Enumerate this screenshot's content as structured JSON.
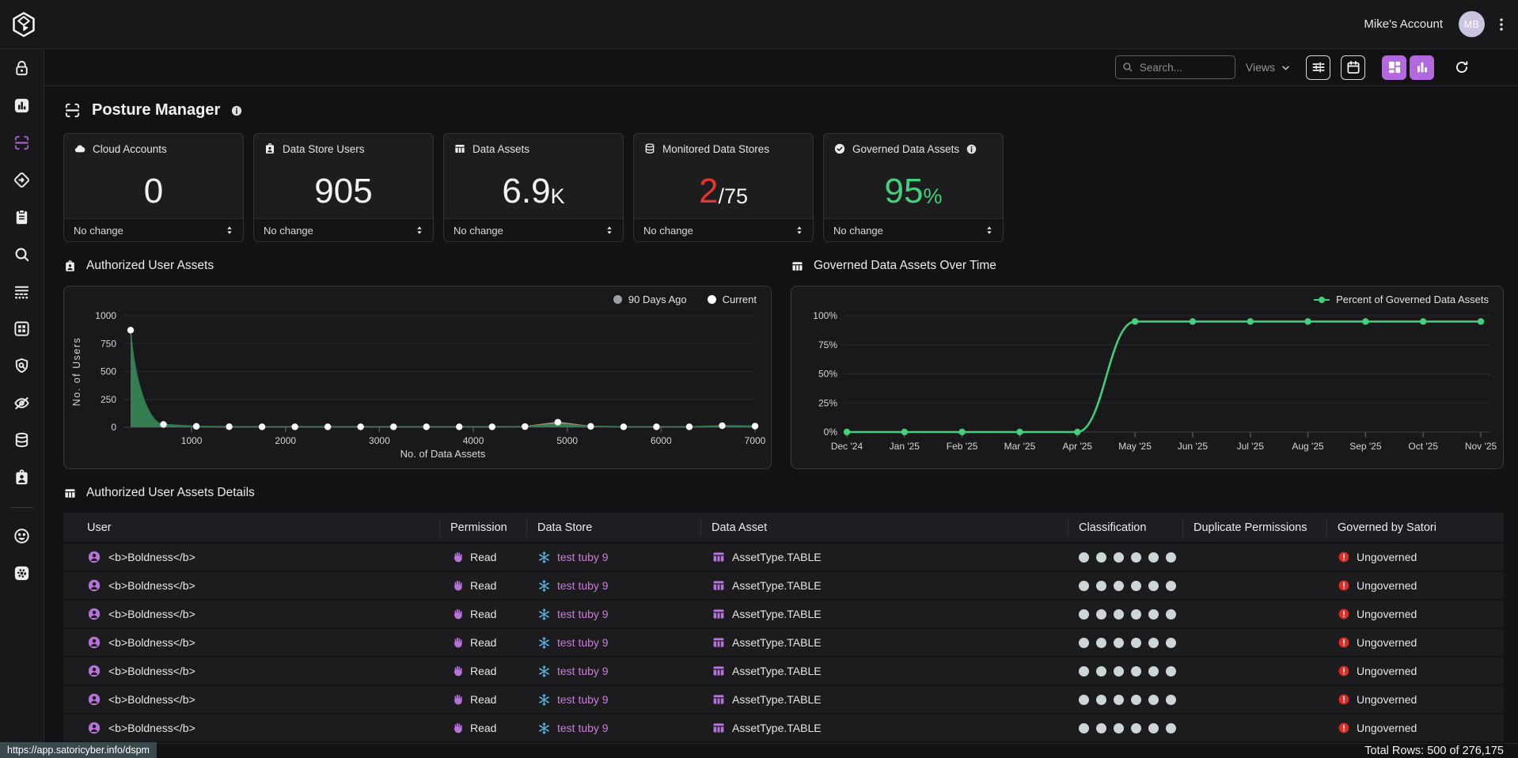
{
  "topbar": {
    "account_label": "Mike's Account",
    "avatar_initials": "MB"
  },
  "toolbar": {
    "search_placeholder": "Search...",
    "views_label": "Views",
    "buttons": [
      {
        "name": "filter-button",
        "icon": "sliders",
        "style": "outline"
      },
      {
        "name": "calendar-button",
        "icon": "calendar",
        "style": "outline"
      },
      {
        "name": "dashboard-view-button",
        "icon": "dashboard",
        "style": "purple"
      },
      {
        "name": "chart-view-button",
        "icon": "bar-chart-small",
        "style": "purple"
      },
      {
        "name": "refresh-button",
        "icon": "refresh",
        "style": "plain"
      }
    ]
  },
  "sidebar": {
    "items": [
      {
        "name": "access-lock",
        "icon": "lock",
        "active": false
      },
      {
        "name": "reports",
        "icon": "bar-chart",
        "active": false
      },
      {
        "name": "posture-manager",
        "icon": "posture-scan",
        "active": true
      },
      {
        "name": "policies",
        "icon": "policy-diamond",
        "active": false
      },
      {
        "name": "audit",
        "icon": "clipboard",
        "active": false
      },
      {
        "name": "search-explore",
        "icon": "search",
        "active": false
      },
      {
        "name": "data-flows",
        "icon": "data-flows",
        "active": false
      },
      {
        "name": "integrations",
        "icon": "grid-apps",
        "active": false
      },
      {
        "name": "threat-detection",
        "icon": "shield-search",
        "active": false
      },
      {
        "name": "masking",
        "icon": "eye-off",
        "active": false
      },
      {
        "name": "data-stores",
        "icon": "database",
        "active": false
      },
      {
        "name": "identities",
        "icon": "id-badge",
        "active": false
      },
      {
        "name": "divider",
        "icon": "divider",
        "active": false
      },
      {
        "name": "community",
        "icon": "community",
        "active": false
      },
      {
        "name": "settings",
        "icon": "settings",
        "active": false
      }
    ]
  },
  "page": {
    "title": "Posture Manager"
  },
  "stat_cards": [
    {
      "label": "Cloud Accounts",
      "icon": "cloud",
      "value": "0",
      "suffix": "",
      "value_color": "#f5f5f5",
      "suffix_color": "#f5f5f5",
      "info": false,
      "footer": "No change"
    },
    {
      "label": "Data Store Users",
      "icon": "id-badge",
      "value": "905",
      "suffix": "",
      "value_color": "#f5f5f5",
      "suffix_color": "#f5f5f5",
      "info": false,
      "footer": "No change"
    },
    {
      "label": "Data Assets",
      "icon": "table",
      "value": "6.9",
      "suffix": "K",
      "value_color": "#f5f5f5",
      "suffix_color": "#f5f5f5",
      "info": false,
      "footer": "No change"
    },
    {
      "label": "Monitored Data Stores",
      "icon": "database",
      "value": "2",
      "suffix": "/75",
      "value_color": "#e8352c",
      "suffix_color": "#f5f5f5",
      "info": false,
      "footer": "No change"
    },
    {
      "label": "Governed Data Assets",
      "icon": "check-circle",
      "value": "95",
      "suffix": "%",
      "value_color": "#42d07b",
      "suffix_color": "#42d07b",
      "info": true,
      "footer": "No change"
    }
  ],
  "chart_data": [
    {
      "type": "area",
      "title": "Authorized User Assets",
      "title_icon": "id-badge",
      "xlabel": "No. of Data Assets",
      "ylabel": "No. of Users",
      "x": [
        350,
        700,
        1050,
        1400,
        1750,
        2100,
        2450,
        2800,
        3150,
        3500,
        3850,
        4200,
        4550,
        4900,
        5250,
        5600,
        5950,
        6300,
        6650,
        7000
      ],
      "series": [
        {
          "name": "90 Days Ago",
          "color": "#a98c72",
          "fill": "#a98c72",
          "values": [
            860,
            20,
            5,
            4,
            4,
            4,
            4,
            4,
            4,
            4,
            4,
            4,
            6,
            45,
            8,
            4,
            4,
            4,
            6,
            5
          ]
        },
        {
          "name": "Current",
          "color": "#2e7d4f",
          "fill": "#2e7d4f",
          "values": [
            870,
            25,
            8,
            5,
            4,
            4,
            4,
            4,
            4,
            4,
            4,
            4,
            5,
            28,
            8,
            4,
            4,
            4,
            14,
            10
          ]
        }
      ],
      "xticks": [
        1000,
        2000,
        3000,
        4000,
        5000,
        6000,
        7000
      ],
      "yticks": [
        0,
        250,
        500,
        750,
        1000
      ],
      "ylim": [
        0,
        1000
      ],
      "xlim": [
        350,
        7000
      ],
      "marker_color": "#ffffff",
      "grid": true,
      "legend_position": "top-right",
      "legend": [
        {
          "label": "90 Days Ago",
          "color": "#9aa0a6"
        },
        {
          "label": "Current",
          "color": "#ffffff"
        }
      ]
    },
    {
      "type": "line",
      "title": "Governed Data Assets Over Time",
      "title_icon": "table",
      "categories": [
        "Dec '24",
        "Jan '25",
        "Feb '25",
        "Mar '25",
        "Apr '25",
        "May '25",
        "Jun '25",
        "Jul '25",
        "Aug '25",
        "Sep '25",
        "Oct '25",
        "Nov '25"
      ],
      "values": [
        0,
        0,
        0,
        0,
        0,
        95,
        95,
        95,
        95,
        95,
        95,
        95
      ],
      "ytick_labels": [
        "0%",
        "25%",
        "50%",
        "75%",
        "100%"
      ],
      "yticks": [
        0,
        25,
        50,
        75,
        100
      ],
      "ylim": [
        0,
        100
      ],
      "grid": true,
      "series_name": "Percent of Governed Data Assets",
      "color": "#42d07b",
      "legend_position": "top-right"
    }
  ],
  "table": {
    "title": "Authorized User Assets Details",
    "columns": [
      "User",
      "Permission",
      "Data Store",
      "Data Asset",
      "Classification",
      "Duplicate Permissions",
      "Governed by Satori"
    ],
    "rows": [
      {
        "user": "<b>Boldness</b>",
        "permission": "Read",
        "data_store": "test tuby 9",
        "data_asset": "AssetType.TABLE",
        "classification_dots": 6,
        "duplicate_permissions": "",
        "governed": "Ungoverned"
      },
      {
        "user": "<b>Boldness</b>",
        "permission": "Read",
        "data_store": "test tuby 9",
        "data_asset": "AssetType.TABLE",
        "classification_dots": 6,
        "duplicate_permissions": "",
        "governed": "Ungoverned"
      },
      {
        "user": "<b>Boldness</b>",
        "permission": "Read",
        "data_store": "test tuby 9",
        "data_asset": "AssetType.TABLE",
        "classification_dots": 6,
        "duplicate_permissions": "",
        "governed": "Ungoverned"
      },
      {
        "user": "<b>Boldness</b>",
        "permission": "Read",
        "data_store": "test tuby 9",
        "data_asset": "AssetType.TABLE",
        "classification_dots": 6,
        "duplicate_permissions": "",
        "governed": "Ungoverned"
      },
      {
        "user": "<b>Boldness</b>",
        "permission": "Read",
        "data_store": "test tuby 9",
        "data_asset": "AssetType.TABLE",
        "classification_dots": 6,
        "duplicate_permissions": "",
        "governed": "Ungoverned"
      },
      {
        "user": "<b>Boldness</b>",
        "permission": "Read",
        "data_store": "test tuby 9",
        "data_asset": "AssetType.TABLE",
        "classification_dots": 6,
        "duplicate_permissions": "",
        "governed": "Ungoverned"
      },
      {
        "user": "<b>Boldness</b>",
        "permission": "Read",
        "data_store": "test tuby 9",
        "data_asset": "AssetType.TABLE",
        "classification_dots": 6,
        "duplicate_permissions": "",
        "governed": "Ungoverned"
      }
    ]
  },
  "footer": {
    "total_rows": "Total Rows: 500 of 276,175",
    "url_tooltip": "https://app.satoricyber.info/dspm"
  },
  "colors": {
    "accent_purple": "#b269dd",
    "green": "#42d07b",
    "red": "#e8352c",
    "ungoverned_red": "#dd2c26",
    "snowflake_blue": "#49b5ea"
  }
}
